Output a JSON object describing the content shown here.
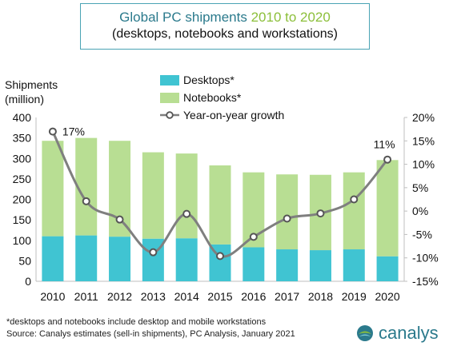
{
  "header": {
    "title_part1": "Global PC shipments",
    "title_highlight": "2010 to 2020",
    "subtitle": "(desktops, notebooks and workstations)"
  },
  "ylabel": {
    "line1": "Shipments",
    "line2": "(million)"
  },
  "legend": {
    "desktops": "Desktops*",
    "notebooks": "Notebooks*",
    "growth": "Year-on-year growth"
  },
  "colors": {
    "desktops": "#40c4d2",
    "notebooks": "#b8de93",
    "growth_line": "#7f7f7f",
    "title": "#2b7a8c",
    "title_highlight": "#8cbf3a",
    "border": "#4aa3b4"
  },
  "chart_data": {
    "type": "bar",
    "stacked": true,
    "categories": [
      "2010",
      "2011",
      "2012",
      "2013",
      "2014",
      "2015",
      "2016",
      "2017",
      "2018",
      "2019",
      "2020"
    ],
    "series": [
      {
        "name": "Desktops*",
        "values": [
          110,
          112,
          109,
          104,
          105,
          90,
          83,
          78,
          76,
          78,
          61
        ]
      },
      {
        "name": "Notebooks*",
        "values": [
          233,
          238,
          234,
          211,
          207,
          193,
          183,
          183,
          184,
          188,
          235
        ]
      }
    ],
    "line_series": {
      "name": "Year-on-year growth",
      "axis": "right",
      "values": [
        17,
        2.1,
        -1.8,
        -8.8,
        -0.6,
        -9.6,
        -5.5,
        -1.6,
        -0.5,
        2.5,
        11
      ],
      "labels": {
        "0": "17%",
        "10": "11%"
      }
    },
    "xlabel": "",
    "ylabel": "Shipments (million)",
    "ylim": [
      0,
      400
    ],
    "yticks": [
      "0",
      "50",
      "100",
      "150",
      "200",
      "250",
      "300",
      "350",
      "400"
    ],
    "y2lim": [
      -15,
      20
    ],
    "y2ticks": [
      "-15%",
      "-10%",
      "-5%",
      "0%",
      "5%",
      "10%",
      "15%",
      "20%"
    ],
    "grid": false
  },
  "footnote": {
    "line1": "*desktops and notebooks include desktop and mobile workstations",
    "line2": "Source: Canalys estimates (sell-in shipments), PC Analysis, January 2021"
  },
  "logo": {
    "text": "canalys"
  }
}
